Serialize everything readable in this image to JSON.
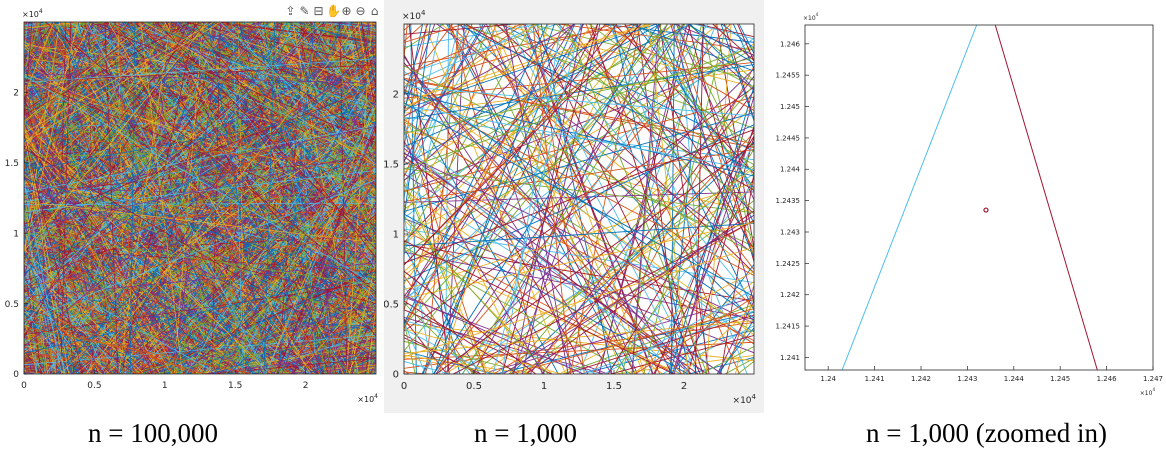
{
  "captions": {
    "a": "n = 100,000",
    "b": "n = 1,000",
    "c": "n = 1,000 (zoomed in)"
  },
  "toolbar": {
    "icons": [
      "export-icon",
      "brush-icon",
      "data-tips-icon",
      "pan-icon",
      "zoom-in-icon",
      "zoom-out-icon",
      "home-icon"
    ]
  },
  "line_colors": [
    "#0072BD",
    "#D95319",
    "#EDB120",
    "#7E2F8E",
    "#77AC30",
    "#4DBEEE",
    "#A2142F"
  ],
  "chart_data": [
    {
      "type": "line",
      "description_caption": "n = 100,000",
      "xlim": [
        0,
        25000
      ],
      "ylim": [
        0,
        25000
      ],
      "x_ticks": [
        0,
        0.5,
        1,
        1.5,
        2
      ],
      "y_ticks": [
        0,
        0.5,
        1,
        1.5,
        2
      ],
      "x_exponent": "×10",
      "x_exponent_power": "4",
      "y_exponent": "×10",
      "y_exponent_power": "4",
      "line_count": 100000,
      "grid": false
    },
    {
      "type": "line",
      "description_caption": "n = 1,000",
      "xlim": [
        0,
        25000
      ],
      "ylim": [
        0,
        25000
      ],
      "x_ticks": [
        0,
        0.5,
        1,
        1.5,
        2
      ],
      "y_ticks": [
        0,
        0.5,
        1,
        1.5,
        2
      ],
      "x_exponent": "×10",
      "x_exponent_power": "4",
      "y_exponent": "×10",
      "y_exponent_power": "4",
      "line_count": 1000,
      "grid": false
    },
    {
      "type": "line",
      "description_caption": "n = 1,000 (zoomed in)",
      "xlim": [
        12395,
        12470
      ],
      "ylim": [
        12408,
        12463
      ],
      "x_ticks": [
        1.24,
        1.241,
        1.242,
        1.243,
        1.244,
        1.245,
        1.246,
        1.247
      ],
      "y_ticks": [
        1.241,
        1.2415,
        1.242,
        1.2425,
        1.243,
        1.2435,
        1.244,
        1.2445,
        1.245,
        1.2455,
        1.246
      ],
      "x_exponent": "×10",
      "x_exponent_power": "4",
      "y_exponent": "×10",
      "y_exponent_power": "4",
      "series": [
        {
          "name": "",
          "color": "#4DBEEE",
          "x": [
            12403,
            12432
          ],
          "y": [
            12408,
            12463
          ]
        },
        {
          "name": "",
          "color": "#A2142F",
          "x": [
            12458,
            12436
          ],
          "y": [
            12408,
            12463
          ]
        }
      ],
      "marker": {
        "x": 12434,
        "y": 12433.5,
        "color": "#A2142F"
      },
      "grid": false
    }
  ]
}
